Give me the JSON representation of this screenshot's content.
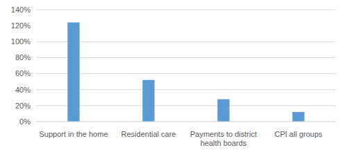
{
  "chart_data": {
    "type": "bar",
    "categories": [
      "Support in the home",
      "Residential care",
      "Payments to district health boards",
      "CPI all groups"
    ],
    "values": [
      124,
      52,
      28,
      12
    ],
    "color": "#5b9bd5",
    "ylim": [
      0,
      140
    ],
    "yticks": [
      {
        "value": 0,
        "label": "0%"
      },
      {
        "value": 20,
        "label": "20%"
      },
      {
        "value": 40,
        "label": "40%"
      },
      {
        "value": 60,
        "label": "60%"
      },
      {
        "value": 80,
        "label": "80%"
      },
      {
        "value": 100,
        "label": "100%"
      },
      {
        "value": 120,
        "label": "120%"
      },
      {
        "value": 140,
        "label": "140%"
      }
    ],
    "grid": true
  }
}
